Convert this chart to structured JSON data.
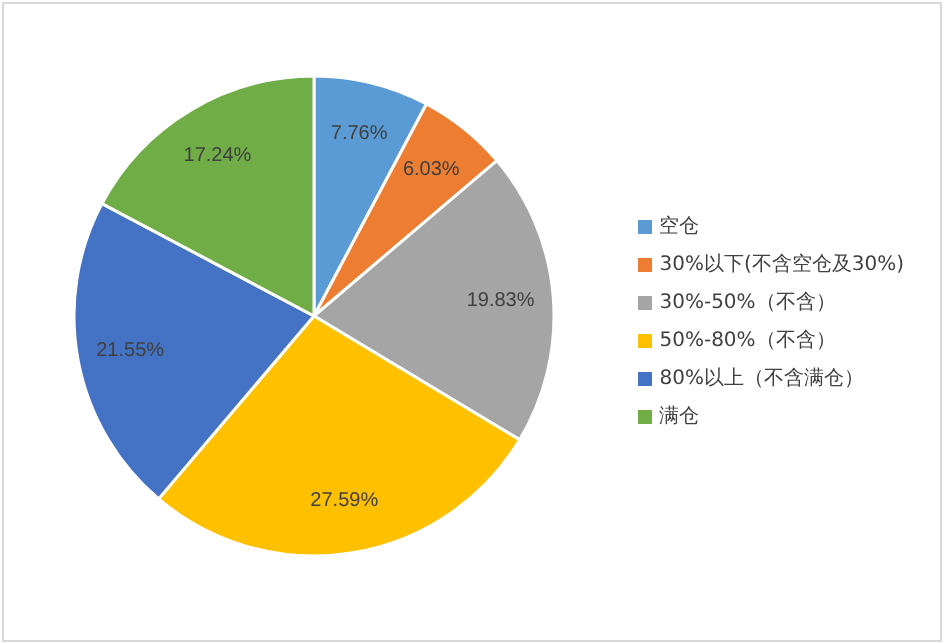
{
  "chart_data": {
    "type": "pie",
    "categories": [
      "空仓",
      "30%以下(不含空仓及30%)",
      "30%-50%（不含）",
      "50%-80%（不含）",
      "80%以上（不含满仓）",
      "满仓"
    ],
    "values": [
      7.76,
      6.03,
      19.83,
      27.59,
      21.55,
      17.24
    ],
    "value_labels": [
      "7.76%",
      "6.03%",
      "19.83%",
      "27.59%",
      "21.55%",
      "17.24%"
    ],
    "colors": [
      "#5b9bd5",
      "#ed7d31",
      "#a5a5a5",
      "#ffc000",
      "#4472c4",
      "#70ad47"
    ],
    "legend": "right"
  }
}
